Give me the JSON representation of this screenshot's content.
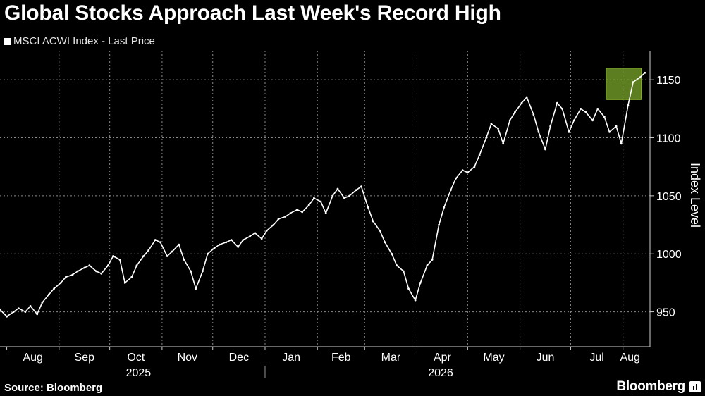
{
  "header": {
    "title": "Global Stocks Approach Last Week's Record High"
  },
  "footer": {
    "source": "Source: Bloomberg",
    "brand": "Bloomberg"
  },
  "colors": {
    "background": "#000000",
    "series": "#ffffff",
    "grid": "#8a8a8a",
    "highlight_fill": "#7ba82c",
    "highlight_stroke": "#a6d63a"
  },
  "chart_data": {
    "type": "line",
    "title": "Global Stocks Approach Last Week's Record High",
    "ylabel": "Index Level",
    "xlabel": "",
    "ylim": [
      920,
      1175
    ],
    "yticks": [
      950,
      1000,
      1050,
      1100,
      1150
    ],
    "y_axis_position": "right",
    "grid": true,
    "legend": {
      "position": "top-left",
      "entries": [
        "MSCI ACWI Index - Last Price"
      ]
    },
    "x_range": [
      "2025-07-28",
      "2026-08-17"
    ],
    "x_month_ticks": [
      {
        "label": "Aug",
        "date": "2025-08-01"
      },
      {
        "label": "Sep",
        "date": "2025-09-01"
      },
      {
        "label": "Oct",
        "date": "2025-10-01"
      },
      {
        "label": "Nov",
        "date": "2025-11-01"
      },
      {
        "label": "Dec",
        "date": "2025-12-01"
      },
      {
        "label": "Jan",
        "date": "2026-01-01"
      },
      {
        "label": "Feb",
        "date": "2026-02-01"
      },
      {
        "label": "Mar",
        "date": "2026-03-01"
      },
      {
        "label": "Apr",
        "date": "2026-04-01"
      },
      {
        "label": "May",
        "date": "2026-05-01"
      },
      {
        "label": "Jun",
        "date": "2026-06-01"
      },
      {
        "label": "Jul",
        "date": "2026-07-01"
      },
      {
        "label": "Aug",
        "date": "2026-08-01"
      }
    ],
    "x_year_labels": [
      {
        "label": "2025",
        "date": "2025-10-18"
      },
      {
        "label": "2026",
        "date": "2026-04-15"
      }
    ],
    "year_separator": "2026-01-01",
    "highlight": {
      "x_start": "2026-07-22",
      "x_end": "2026-08-12",
      "y_low": 1133,
      "y_high": 1160
    },
    "series": [
      {
        "name": "MSCI ACWI Index - Last Price",
        "points": [
          [
            "2025-07-28",
            952
          ],
          [
            "2025-08-01",
            946
          ],
          [
            "2025-08-05",
            950
          ],
          [
            "2025-08-08",
            953
          ],
          [
            "2025-08-12",
            950
          ],
          [
            "2025-08-15",
            955
          ],
          [
            "2025-08-19",
            948
          ],
          [
            "2025-08-22",
            958
          ],
          [
            "2025-08-26",
            965
          ],
          [
            "2025-08-29",
            970
          ],
          [
            "2025-09-02",
            975
          ],
          [
            "2025-09-05",
            980
          ],
          [
            "2025-09-09",
            982
          ],
          [
            "2025-09-12",
            985
          ],
          [
            "2025-09-16",
            988
          ],
          [
            "2025-09-19",
            990
          ],
          [
            "2025-09-23",
            985
          ],
          [
            "2025-09-26",
            983
          ],
          [
            "2025-09-30",
            990
          ],
          [
            "2025-10-03",
            998
          ],
          [
            "2025-10-07",
            995
          ],
          [
            "2025-10-10",
            975
          ],
          [
            "2025-10-14",
            980
          ],
          [
            "2025-10-17",
            990
          ],
          [
            "2025-10-21",
            998
          ],
          [
            "2025-10-24",
            1003
          ],
          [
            "2025-10-28",
            1012
          ],
          [
            "2025-10-31",
            1010
          ],
          [
            "2025-11-04",
            998
          ],
          [
            "2025-11-07",
            1002
          ],
          [
            "2025-11-11",
            1008
          ],
          [
            "2025-11-14",
            995
          ],
          [
            "2025-11-18",
            985
          ],
          [
            "2025-11-21",
            970
          ],
          [
            "2025-11-25",
            985
          ],
          [
            "2025-11-28",
            1000
          ],
          [
            "2025-12-02",
            1005
          ],
          [
            "2025-12-05",
            1008
          ],
          [
            "2025-12-09",
            1010
          ],
          [
            "2025-12-12",
            1012
          ],
          [
            "2025-12-16",
            1006
          ],
          [
            "2025-12-19",
            1012
          ],
          [
            "2025-12-23",
            1015
          ],
          [
            "2025-12-26",
            1018
          ],
          [
            "2025-12-30",
            1013
          ],
          [
            "2026-01-02",
            1020
          ],
          [
            "2026-01-06",
            1025
          ],
          [
            "2026-01-09",
            1030
          ],
          [
            "2026-01-13",
            1032
          ],
          [
            "2026-01-16",
            1035
          ],
          [
            "2026-01-20",
            1038
          ],
          [
            "2026-01-23",
            1036
          ],
          [
            "2026-01-27",
            1042
          ],
          [
            "2026-01-30",
            1048
          ],
          [
            "2026-02-03",
            1045
          ],
          [
            "2026-02-06",
            1035
          ],
          [
            "2026-02-10",
            1050
          ],
          [
            "2026-02-13",
            1056
          ],
          [
            "2026-02-17",
            1048
          ],
          [
            "2026-02-20",
            1050
          ],
          [
            "2026-02-24",
            1055
          ],
          [
            "2026-02-27",
            1058
          ],
          [
            "2026-03-03",
            1040
          ],
          [
            "2026-03-06",
            1028
          ],
          [
            "2026-03-10",
            1020
          ],
          [
            "2026-03-13",
            1010
          ],
          [
            "2026-03-17",
            1000
          ],
          [
            "2026-03-20",
            990
          ],
          [
            "2026-03-24",
            985
          ],
          [
            "2026-03-27",
            970
          ],
          [
            "2026-03-31",
            960
          ],
          [
            "2026-04-03",
            975
          ],
          [
            "2026-04-07",
            990
          ],
          [
            "2026-04-10",
            995
          ],
          [
            "2026-04-14",
            1025
          ],
          [
            "2026-04-17",
            1040
          ],
          [
            "2026-04-21",
            1055
          ],
          [
            "2026-04-24",
            1065
          ],
          [
            "2026-04-28",
            1072
          ],
          [
            "2026-05-01",
            1070
          ],
          [
            "2026-05-05",
            1075
          ],
          [
            "2026-05-08",
            1085
          ],
          [
            "2026-05-12",
            1100
          ],
          [
            "2026-05-15",
            1112
          ],
          [
            "2026-05-19",
            1108
          ],
          [
            "2026-05-22",
            1095
          ],
          [
            "2026-05-26",
            1115
          ],
          [
            "2026-05-29",
            1122
          ],
          [
            "2026-06-02",
            1130
          ],
          [
            "2026-06-05",
            1135
          ],
          [
            "2026-06-09",
            1120
          ],
          [
            "2026-06-12",
            1105
          ],
          [
            "2026-06-16",
            1090
          ],
          [
            "2026-06-19",
            1110
          ],
          [
            "2026-06-23",
            1130
          ],
          [
            "2026-06-26",
            1125
          ],
          [
            "2026-06-30",
            1105
          ],
          [
            "2026-07-03",
            1115
          ],
          [
            "2026-07-07",
            1125
          ],
          [
            "2026-07-10",
            1122
          ],
          [
            "2026-07-14",
            1115
          ],
          [
            "2026-07-17",
            1125
          ],
          [
            "2026-07-21",
            1118
          ],
          [
            "2026-07-24",
            1105
          ],
          [
            "2026-07-28",
            1110
          ],
          [
            "2026-07-31",
            1095
          ],
          [
            "2026-08-04",
            1128
          ],
          [
            "2026-08-07",
            1148
          ],
          [
            "2026-08-11",
            1152
          ],
          [
            "2026-08-14",
            1156
          ]
        ]
      }
    ]
  }
}
